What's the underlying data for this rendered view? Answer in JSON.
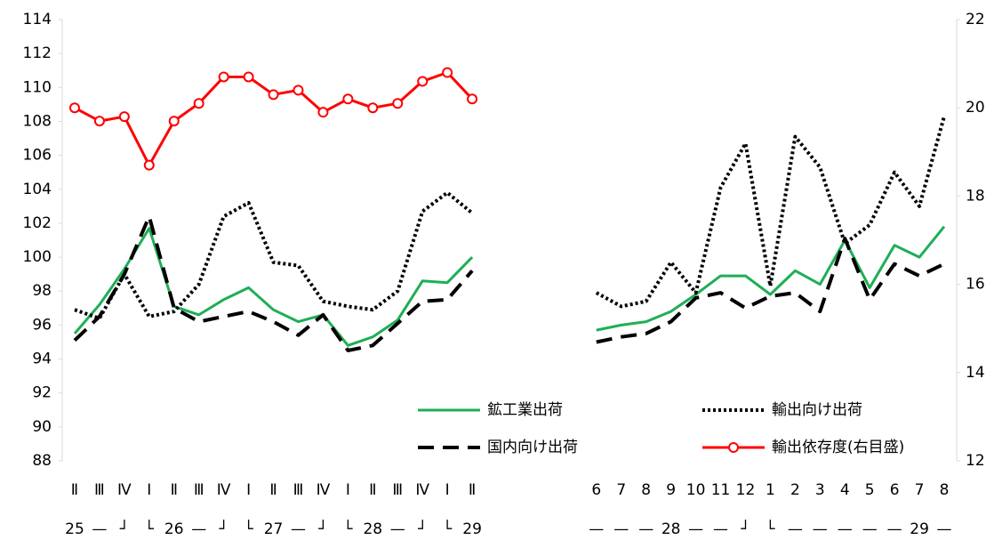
{
  "chart_data": {
    "type": "line",
    "categories": [
      "Ⅱ",
      "Ⅲ",
      "Ⅳ",
      "Ⅰ",
      "Ⅱ",
      "Ⅲ",
      "Ⅳ",
      "Ⅰ",
      "Ⅱ",
      "Ⅲ",
      "Ⅳ",
      "Ⅰ",
      "Ⅱ",
      "Ⅲ",
      "Ⅳ",
      "Ⅰ",
      "Ⅱ",
      null,
      null,
      null,
      null,
      "6",
      "7",
      "8",
      "9",
      "10",
      "11",
      "12",
      "1",
      "2",
      "3",
      "4",
      "5",
      "6",
      "7",
      "8"
    ],
    "category_groups": [
      "25",
      "—",
      "┘",
      "└",
      "26",
      "—",
      "┘",
      "└",
      "27",
      "—",
      "┘",
      "└",
      "28",
      "—",
      "┘",
      "└",
      "29",
      null,
      null,
      null,
      null,
      "—",
      "—",
      "—",
      "28",
      "—",
      "—",
      "┘",
      "└",
      "—",
      "—",
      "—",
      "—",
      "—",
      "29",
      "—"
    ],
    "ylim": [
      88,
      114
    ],
    "yticks": [
      88,
      90,
      92,
      94,
      96,
      98,
      100,
      102,
      104,
      106,
      108,
      110,
      112,
      114
    ],
    "y2lim": [
      12,
      22
    ],
    "y2ticks": [
      12,
      14,
      16,
      18,
      20,
      22
    ],
    "series": [
      {
        "name": "鉱工業出荷",
        "color": "#1fae55",
        "style": "solid",
        "values": [
          95.5,
          97.2,
          99.3,
          101.7,
          97.1,
          96.6,
          97.5,
          98.2,
          96.9,
          96.2,
          96.6,
          94.8,
          95.3,
          96.3,
          98.6,
          98.5,
          100.0,
          null,
          null,
          null,
          null,
          95.7,
          96.0,
          96.2,
          96.8,
          97.8,
          98.9,
          98.9,
          97.8,
          99.2,
          98.4,
          101.0,
          98.2,
          100.7,
          100.0,
          101.8
        ]
      },
      {
        "name": "輸出向け出荷",
        "color": "#000000",
        "style": "dotted",
        "values": [
          96.9,
          96.4,
          99.0,
          96.5,
          96.8,
          98.4,
          102.4,
          103.2,
          99.7,
          99.5,
          97.4,
          97.1,
          96.9,
          98.0,
          102.7,
          103.8,
          102.6,
          null,
          null,
          null,
          null,
          97.9,
          97.1,
          97.4,
          99.7,
          97.9,
          104.1,
          106.7,
          98.3,
          107.1,
          105.3,
          100.8,
          101.9,
          105.0,
          103.0,
          108.3
        ]
      },
      {
        "name": "国内向け出荷",
        "color": "#000000",
        "style": "dashed",
        "values": [
          95.1,
          96.5,
          99.0,
          102.4,
          97.0,
          96.2,
          96.5,
          96.8,
          96.2,
          95.4,
          96.6,
          94.5,
          94.8,
          96.1,
          97.4,
          97.5,
          99.2,
          null,
          null,
          null,
          null,
          95.0,
          95.3,
          95.5,
          96.2,
          97.6,
          97.9,
          97.0,
          97.7,
          97.9,
          96.8,
          101.1,
          97.5,
          99.6,
          98.9,
          99.6
        ]
      },
      {
        "name": "輸出依存度(右目盛)",
        "color": "#ff0000",
        "style": "marker",
        "axis": "y2",
        "values": [
          20.0,
          19.7,
          19.8,
          18.7,
          19.7,
          20.1,
          20.7,
          20.7,
          20.3,
          20.4,
          19.9,
          20.2,
          20.0,
          20.1,
          20.6,
          20.8,
          20.2,
          null,
          null,
          null,
          null,
          null,
          null,
          null,
          null,
          null,
          null,
          null,
          null,
          null,
          null,
          null,
          null,
          null,
          null,
          null
        ]
      }
    ]
  }
}
